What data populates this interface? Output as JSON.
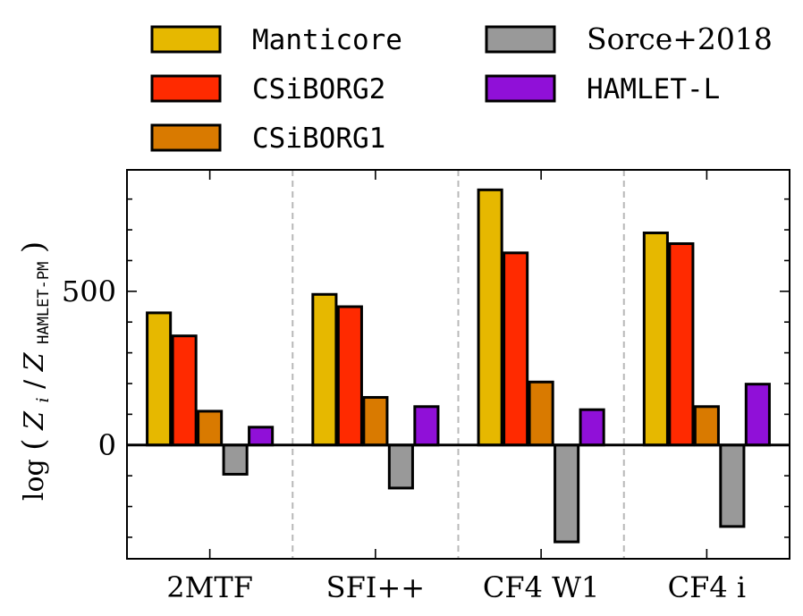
{
  "chart_data": {
    "type": "bar",
    "categories": [
      "2MTF",
      "SFI++",
      "CF4 W1",
      "CF4 i"
    ],
    "series": [
      {
        "name": "Manticore",
        "color": "#e6b800",
        "values": [
          430,
          490,
          830,
          690
        ]
      },
      {
        "name": "CSiBORG2",
        "color": "#ff2a00",
        "values": [
          355,
          450,
          625,
          655
        ]
      },
      {
        "name": "CSiBORG1",
        "color": "#d97a00",
        "values": [
          110,
          155,
          205,
          125
        ]
      },
      {
        "name": "Sorce+2018",
        "color": "#999999",
        "values": [
          -95,
          -140,
          -315,
          -265
        ]
      },
      {
        "name": "HAMLET-L",
        "color": "#9010d8",
        "values": [
          58,
          125,
          115,
          198
        ]
      }
    ],
    "title": "",
    "xlabel": "",
    "ylabel": {
      "prefix": "log",
      "num": "Z",
      "num_sub": "i",
      "den": "Z",
      "den_sub": "HAMLET-PM"
    },
    "ylim": [
      -370,
      895
    ],
    "yticks": [
      0,
      500
    ],
    "legend": "top, two columns above plot",
    "grid": false,
    "zero_line": true
  }
}
